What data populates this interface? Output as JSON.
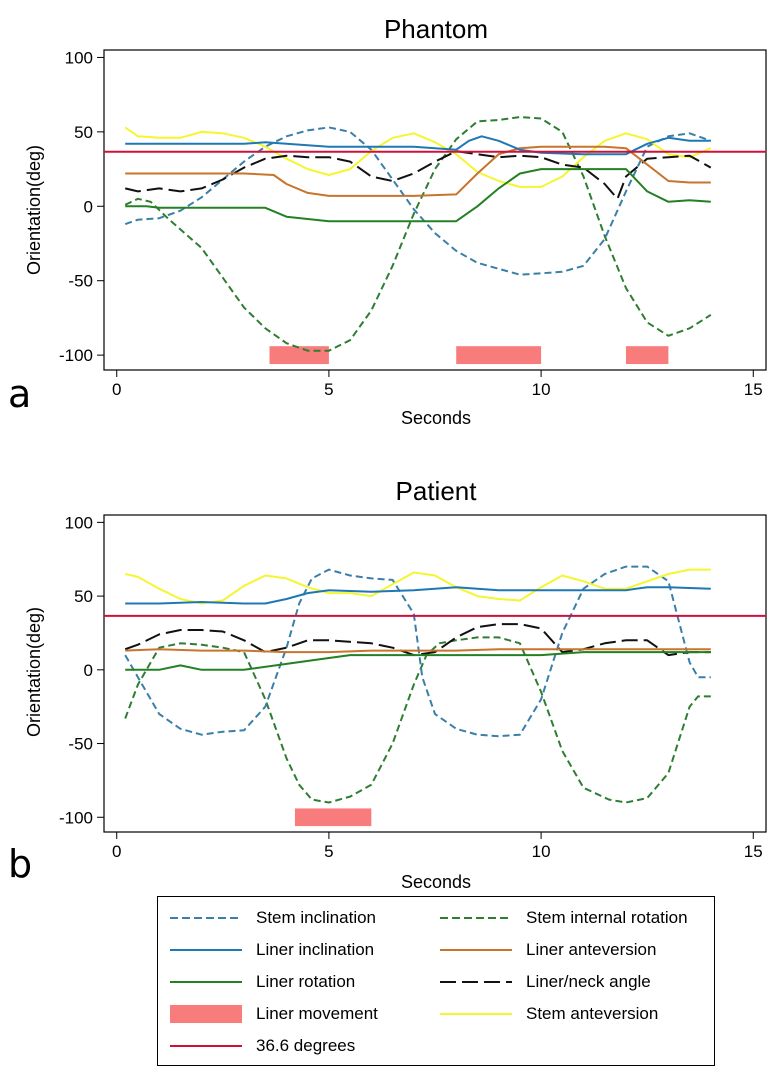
{
  "chart_data": [
    {
      "type": "line",
      "title": "Phantom",
      "panel_label": "a",
      "xlabel": "Seconds",
      "ylabel": "Orientation(deg)",
      "xlim": [
        -0.3,
        15.3
      ],
      "ylim": [
        -110,
        105
      ],
      "xticks": [
        0,
        5,
        10,
        15
      ],
      "yticks": [
        -100,
        -50,
        0,
        50,
        100
      ],
      "grid": false,
      "reference_line": {
        "name": "36.6 degrees",
        "value": 36.6
      },
      "liner_movement": [
        [
          3.6,
          5.0
        ],
        [
          8.0,
          10.0
        ],
        [
          12.0,
          13.0
        ]
      ],
      "series": [
        {
          "name": "Stem inclination",
          "x": [
            0.2,
            0.5,
            1,
            1.5,
            2,
            2.5,
            3,
            3.5,
            4,
            4.5,
            5,
            5.5,
            6,
            6.5,
            7,
            7.5,
            8,
            8.5,
            9,
            9.5,
            10,
            10.5,
            11,
            11.5,
            12,
            12.5,
            13,
            13.5,
            14
          ],
          "y": [
            -12,
            -9,
            -8,
            -3,
            6,
            18,
            30,
            40,
            47,
            51,
            53,
            50,
            38,
            18,
            -2,
            -18,
            -30,
            -38,
            -42,
            -46,
            -45,
            -44,
            -40,
            -22,
            10,
            40,
            47,
            49,
            44
          ]
        },
        {
          "name": "Liner inclination",
          "x": [
            0.2,
            1,
            2,
            3,
            3.5,
            4,
            5,
            6,
            7,
            7.5,
            8,
            8.3,
            8.6,
            9,
            9.5,
            10,
            11,
            12,
            12.5,
            13,
            13.5,
            14
          ],
          "y": [
            42,
            42,
            42,
            42,
            43,
            42,
            40,
            40,
            40,
            39,
            38,
            44,
            47,
            44,
            38,
            36,
            35,
            35,
            42,
            46,
            44,
            44
          ]
        },
        {
          "name": "Liner rotation",
          "x": [
            0.2,
            0.7,
            1,
            2,
            3,
            3.5,
            4,
            5,
            6,
            7,
            8,
            8.5,
            9,
            9.5,
            10,
            11,
            12,
            12.5,
            13,
            13.5,
            14
          ],
          "y": [
            0,
            0,
            -1,
            -1,
            -1,
            -1,
            -7,
            -10,
            -10,
            -10,
            -10,
            0,
            12,
            22,
            25,
            25,
            25,
            10,
            3,
            4,
            3
          ]
        },
        {
          "name": "Liner movement",
          "x": [],
          "y": []
        },
        {
          "name": "36.6 degrees",
          "x": [
            0,
            15.3
          ],
          "y": [
            36.6,
            36.6
          ]
        },
        {
          "name": "Stem internal rotation",
          "x": [
            0.2,
            0.5,
            0.8,
            1.2,
            2,
            2.5,
            3,
            3.5,
            4,
            4.5,
            5,
            5.5,
            6,
            6.5,
            7,
            7.5,
            8,
            8.5,
            9,
            9.5,
            10,
            10.5,
            11,
            11.5,
            12,
            12.5,
            13,
            13.2,
            13.5,
            14
          ],
          "y": [
            1,
            5,
            3,
            -8,
            -28,
            -48,
            -68,
            -82,
            -92,
            -97,
            -97,
            -90,
            -70,
            -40,
            -5,
            25,
            45,
            57,
            58,
            60,
            59,
            50,
            20,
            -20,
            -55,
            -78,
            -87,
            -85,
            -82,
            -73
          ]
        },
        {
          "name": "Liner anteversion",
          "x": [
            0.2,
            1,
            2,
            3,
            3.7,
            4,
            4.5,
            5,
            6,
            7,
            8,
            8.5,
            9,
            9.5,
            10,
            10.5,
            11,
            11.5,
            12,
            12.5,
            13,
            13.5,
            14
          ],
          "y": [
            22,
            22,
            22,
            22,
            21,
            15,
            9,
            7,
            7,
            7,
            8,
            22,
            35,
            39,
            40,
            40,
            40,
            40,
            39,
            28,
            17,
            16,
            16
          ]
        },
        {
          "name": "Liner/neck angle",
          "x": [
            0.2,
            0.5,
            1,
            1.5,
            2,
            2.5,
            3,
            3.5,
            4,
            4.5,
            5,
            5.5,
            6,
            6.5,
            7,
            7.5,
            8,
            8.5,
            9,
            9.5,
            10,
            10.5,
            11,
            11.5,
            11.8,
            12,
            12.5,
            13,
            13.5,
            14
          ],
          "y": [
            12,
            10,
            12,
            10,
            12,
            18,
            26,
            32,
            34,
            33,
            33,
            30,
            20,
            17,
            22,
            30,
            37,
            35,
            33,
            34,
            33,
            28,
            26,
            15,
            5,
            20,
            32,
            33,
            34,
            26
          ]
        },
        {
          "name": "Stem anteversion",
          "x": [
            0.2,
            0.5,
            1,
            1.5,
            2,
            2.5,
            3,
            3.5,
            4,
            4.5,
            5,
            5.5,
            6,
            6.5,
            7,
            7.5,
            8,
            8.5,
            9,
            9.5,
            10,
            10.5,
            11,
            11.5,
            12,
            12.5,
            13,
            13.5,
            14
          ],
          "y": [
            53,
            47,
            46,
            46,
            50,
            49,
            46,
            40,
            32,
            25,
            21,
            25,
            37,
            46,
            49,
            43,
            35,
            23,
            17,
            13,
            13,
            20,
            33,
            44,
            49,
            45,
            35,
            33,
            39
          ]
        }
      ]
    },
    {
      "type": "line",
      "title": "Patient",
      "panel_label": "b",
      "xlabel": "Seconds",
      "ylabel": "Orientation(deg)",
      "xlim": [
        -0.3,
        15.3
      ],
      "ylim": [
        -110,
        105
      ],
      "xticks": [
        0,
        5,
        10,
        15
      ],
      "yticks": [
        -100,
        -50,
        0,
        50,
        100
      ],
      "grid": false,
      "reference_line": {
        "name": "36.6 degrees",
        "value": 36.6
      },
      "liner_movement": [
        [
          4.2,
          6.0
        ]
      ],
      "series": [
        {
          "name": "Stem inclination",
          "x": [
            0.2,
            0.5,
            1,
            1.5,
            2,
            2.5,
            3,
            3.5,
            4,
            4.3,
            4.6,
            5,
            5.5,
            6,
            6.5,
            7,
            7.2,
            7.5,
            8,
            8.5,
            9,
            9.5,
            10,
            10.5,
            11,
            11.5,
            12,
            12.5,
            13,
            13.5,
            13.7,
            14
          ],
          "y": [
            10,
            -5,
            -30,
            -40,
            -44,
            -42,
            -41,
            -25,
            15,
            45,
            62,
            68,
            64,
            62,
            61,
            38,
            -5,
            -30,
            -40,
            -44,
            -45,
            -44,
            -20,
            25,
            55,
            65,
            70,
            70,
            60,
            5,
            -5,
            -5
          ]
        },
        {
          "name": "Liner inclination",
          "x": [
            0.2,
            1,
            2,
            3,
            3.5,
            4,
            4.5,
            5,
            6,
            7,
            7.5,
            8,
            9,
            10,
            11,
            12,
            12.5,
            13,
            14
          ],
          "y": [
            45,
            45,
            46,
            45,
            45,
            48,
            52,
            54,
            53,
            54,
            55,
            56,
            54,
            54,
            54,
            54,
            56,
            56,
            55
          ]
        },
        {
          "name": "Liner rotation",
          "x": [
            0.2,
            1,
            1.5,
            2,
            3,
            4,
            5,
            5.5,
            6,
            7,
            8,
            9,
            10,
            11,
            12,
            13,
            14
          ],
          "y": [
            0,
            0,
            3,
            0,
            0,
            4,
            8,
            10,
            10,
            10,
            10,
            10,
            10,
            12,
            12,
            12,
            12
          ]
        },
        {
          "name": "Liner movement",
          "x": [],
          "y": []
        },
        {
          "name": "36.6 degrees",
          "x": [
            0,
            15.3
          ],
          "y": [
            36.6,
            36.6
          ]
        },
        {
          "name": "Stem internal rotation",
          "x": [
            0.2,
            0.5,
            1,
            1.5,
            2,
            2.5,
            3,
            3.5,
            4,
            4.3,
            4.6,
            5,
            5.5,
            6,
            6.5,
            7,
            7.3,
            7.6,
            8,
            8.5,
            9,
            9.5,
            10,
            10.5,
            11,
            11.3,
            11.6,
            12,
            12.5,
            13,
            13.5,
            13.7,
            14
          ],
          "y": [
            -33,
            -10,
            15,
            18,
            17,
            15,
            12,
            -20,
            -60,
            -78,
            -88,
            -90,
            -86,
            -78,
            -50,
            -10,
            10,
            18,
            20,
            22,
            22,
            18,
            -15,
            -55,
            -80,
            -84,
            -88,
            -90,
            -87,
            -70,
            -25,
            -18,
            -18
          ]
        },
        {
          "name": "Liner anteversion",
          "x": [
            0.2,
            1,
            2,
            3,
            4,
            5,
            6,
            7,
            8,
            9,
            10,
            11,
            12,
            13,
            14
          ],
          "y": [
            13,
            14,
            13,
            13,
            12,
            12,
            13,
            13,
            13,
            14,
            14,
            14,
            14,
            14,
            14
          ]
        },
        {
          "name": "Liner/neck angle",
          "x": [
            0.2,
            0.5,
            1,
            1.5,
            2,
            2.5,
            3,
            3.5,
            4,
            4.5,
            5,
            6,
            6.5,
            7,
            7.5,
            8,
            8.5,
            9,
            9.5,
            10,
            10.5,
            11,
            11.5,
            12,
            12.5,
            13,
            13.5,
            14
          ],
          "y": [
            14,
            17,
            24,
            27,
            27,
            26,
            20,
            12,
            15,
            20,
            20,
            18,
            15,
            10,
            12,
            22,
            29,
            31,
            31,
            28,
            12,
            14,
            18,
            20,
            20,
            10,
            12,
            12
          ]
        },
        {
          "name": "Stem anteversion",
          "x": [
            0.2,
            0.5,
            1,
            1.5,
            2,
            2.5,
            3,
            3.5,
            4,
            4.5,
            5,
            5.5,
            6,
            6.5,
            7,
            7.5,
            8,
            8.5,
            9,
            9.5,
            10,
            10.5,
            11,
            11.5,
            12,
            12.5,
            13,
            13.5,
            14
          ],
          "y": [
            65,
            63,
            55,
            48,
            45,
            47,
            57,
            64,
            62,
            56,
            52,
            52,
            50,
            58,
            66,
            64,
            56,
            50,
            48,
            47,
            56,
            64,
            60,
            55,
            55,
            60,
            65,
            68,
            68
          ]
        }
      ]
    }
  ],
  "legend": {
    "items": [
      {
        "label": "Stem inclination",
        "style": "dashed",
        "color": "#3a7fa8"
      },
      {
        "label": "Stem internal rotation",
        "style": "dashed",
        "color": "#2f7d32"
      },
      {
        "label": "Liner inclination",
        "style": "solid",
        "color": "#1f78b4"
      },
      {
        "label": "Liner anteversion",
        "style": "solid",
        "color": "#c8742c"
      },
      {
        "label": "Liner rotation",
        "style": "solid",
        "color": "#238023"
      },
      {
        "label": "Liner/neck angle",
        "style": "longdash",
        "color": "#111111"
      },
      {
        "label": "Liner movement",
        "style": "bar",
        "color": "#f87c7c"
      },
      {
        "label": "Stem anteversion",
        "style": "solid",
        "color": "#f5f530"
      },
      {
        "label": "36.6 degrees",
        "style": "solid",
        "color": "#d0103a"
      }
    ]
  },
  "colors": {
    "Stem inclination": "#3a7fa8",
    "Liner inclination": "#1f78b4",
    "Liner rotation": "#238023",
    "Stem internal rotation": "#2f7d32",
    "Liner anteversion": "#c8742c",
    "Liner/neck angle": "#111111",
    "Stem anteversion": "#f5f530",
    "36.6 degrees": "#d0103a",
    "Liner movement": "#f87c7c"
  }
}
